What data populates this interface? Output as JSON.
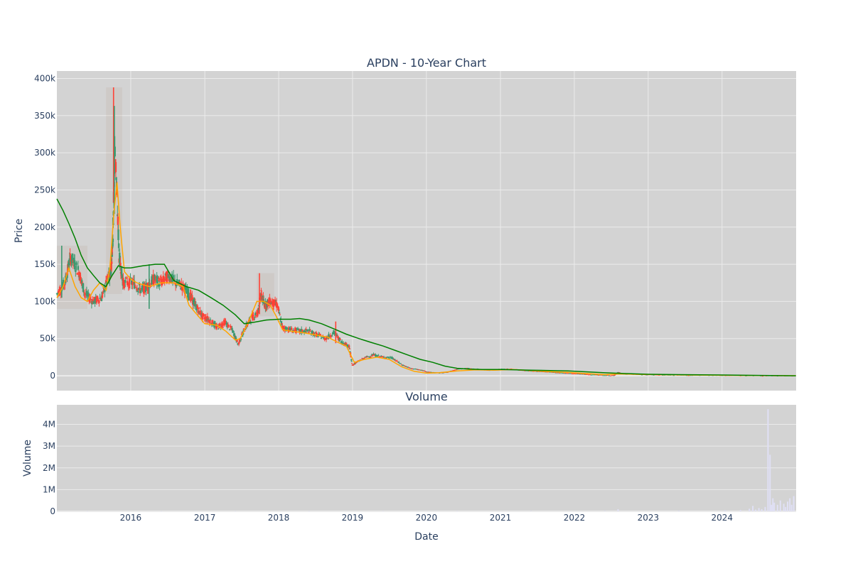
{
  "chart_data": [
    {
      "id": "price",
      "type": "candlestick",
      "title": "APDN - 10-Year Chart",
      "xlabel": "",
      "ylabel": "Price",
      "xlim": [
        "2015-01-01",
        "2025-01-01"
      ],
      "ylim": [
        -20000,
        410000
      ],
      "yticks": [
        0,
        50000,
        100000,
        150000,
        200000,
        250000,
        300000,
        350000,
        400000
      ],
      "ytick_labels": [
        "0",
        "50k",
        "100k",
        "150k",
        "200k",
        "250k",
        "300k",
        "350k",
        "400k"
      ],
      "grid": true,
      "legend": "none",
      "colors": {
        "plot_bg": "#d3d3d3",
        "grid": "#ebebeb",
        "up": "#3d9970",
        "down": "#ff4136",
        "ma_short": "#ffa500",
        "ma_long": "#008000"
      },
      "price_series": {
        "x": [
          "2015-01-01",
          "2015-02-10",
          "2015-03-10",
          "2015-04-20",
          "2015-05-20",
          "2015-06-30",
          "2015-08-10",
          "2015-09-10",
          "2015-09-25",
          "2015-10-05",
          "2015-10-15",
          "2015-11-05",
          "2015-11-25",
          "2016-01-15",
          "2016-02-20",
          "2016-03-20",
          "2016-04-25",
          "2016-05-30",
          "2016-07-05",
          "2016-08-10",
          "2016-09-15",
          "2016-10-15",
          "2016-11-15",
          "2016-12-20",
          "2017-01-25",
          "2017-03-01",
          "2017-04-10",
          "2017-05-20",
          "2017-06-15",
          "2017-07-20",
          "2017-08-20",
          "2017-09-20",
          "2017-10-05",
          "2017-10-25",
          "2017-11-20",
          "2017-12-25",
          "2018-01-20",
          "2018-03-01",
          "2018-04-15",
          "2018-05-30",
          "2018-07-10",
          "2018-08-20",
          "2018-09-30",
          "2018-11-10",
          "2018-12-15",
          "2018-12-31",
          "2019-01-20",
          "2019-03-01",
          "2019-04-15",
          "2019-06-01",
          "2019-07-15",
          "2019-09-01",
          "2019-10-15",
          "2019-12-01",
          "2020-01-15",
          "2020-03-01",
          "2020-04-15",
          "2020-06-01",
          "2020-07-15",
          "2020-09-01",
          "2020-10-15",
          "2020-12-01",
          "2021-01-15",
          "2021-03-01",
          "2021-05-01",
          "2021-07-01",
          "2021-09-01",
          "2021-11-01",
          "2022-01-01",
          "2022-03-01",
          "2022-05-01",
          "2022-07-15",
          "2022-08-05",
          "2022-09-01",
          "2022-11-01",
          "2023-01-01",
          "2023-04-01",
          "2023-07-01",
          "2023-10-01",
          "2024-01-01",
          "2024-04-01",
          "2024-07-01",
          "2024-10-01",
          "2024-12-31"
        ],
        "y": [
          110000,
          125000,
          160000,
          140000,
          110000,
          100000,
          105000,
          130000,
          140000,
          190000,
          310000,
          160000,
          125000,
          125000,
          115000,
          120000,
          130000,
          125000,
          135000,
          125000,
          120000,
          110000,
          95000,
          80000,
          75000,
          65000,
          72000,
          60000,
          42000,
          65000,
          78000,
          85000,
          110000,
          95000,
          100000,
          95000,
          65000,
          62000,
          60000,
          60000,
          55000,
          50000,
          58000,
          45000,
          40000,
          14000,
          18000,
          24000,
          28000,
          25000,
          24000,
          15000,
          10000,
          8000,
          5000,
          4000,
          5000,
          9000,
          10000,
          9000,
          8000,
          8000,
          9000,
          9000,
          7000,
          6000,
          5000,
          4000,
          3000,
          2000,
          1000,
          500,
          4500,
          2500,
          2000,
          1500,
          1200,
          1000,
          800,
          600,
          400,
          300,
          200,
          100
        ]
      },
      "highs": [
        {
          "x": "2015-01-25",
          "y": 175000
        },
        {
          "x": "2015-10-08",
          "y": 388000
        },
        {
          "x": "2015-10-12",
          "y": 363000
        },
        {
          "x": "2017-09-28",
          "y": 138000
        },
        {
          "x": "2016-04-01",
          "y": 150000
        },
        {
          "x": "2018-10-10",
          "y": 73000
        }
      ],
      "ma_short": {
        "x": [
          "2015-01-01",
          "2015-02-01",
          "2015-03-01",
          "2015-04-01",
          "2015-05-01",
          "2015-06-01",
          "2015-07-01",
          "2015-08-01",
          "2015-09-01",
          "2015-09-20",
          "2015-10-10",
          "2015-10-25",
          "2015-11-10",
          "2015-12-01",
          "2016-01-01",
          "2016-02-01",
          "2016-04-01",
          "2016-06-01",
          "2016-08-01",
          "2016-09-15",
          "2016-10-15",
          "2016-11-15",
          "2017-01-01",
          "2017-03-01",
          "2017-04-15",
          "2017-06-01",
          "2017-06-25",
          "2017-08-01",
          "2017-09-15",
          "2017-10-20",
          "2017-11-20",
          "2017-12-20",
          "2018-01-20",
          "2018-03-01",
          "2018-05-01",
          "2018-07-01",
          "2018-09-01",
          "2018-10-20",
          "2018-12-01",
          "2019-01-10",
          "2019-03-01",
          "2019-05-01",
          "2019-07-01",
          "2019-09-01",
          "2019-11-01",
          "2020-01-01",
          "2020-03-01",
          "2020-06-01",
          "2020-09-01",
          "2020-12-01",
          "2021-03-01",
          "2021-06-01",
          "2021-09-01",
          "2021-12-01",
          "2022-03-01",
          "2022-06-01",
          "2022-08-15",
          "2022-11-01",
          "2023-03-01",
          "2023-07-01",
          "2023-11-01",
          "2024-03-01",
          "2024-07-01",
          "2024-12-31"
        ],
        "y": [
          105000,
          120000,
          145000,
          120000,
          105000,
          100000,
          115000,
          125000,
          115000,
          145000,
          220000,
          260000,
          200000,
          140000,
          130000,
          125000,
          120000,
          125000,
          125000,
          120000,
          95000,
          85000,
          70000,
          68000,
          60000,
          48000,
          50000,
          70000,
          100000,
          100000,
          95000,
          80000,
          62000,
          60000,
          58000,
          55000,
          52000,
          45000,
          40000,
          18000,
          22000,
          25000,
          22000,
          12000,
          6000,
          3500,
          4000,
          6500,
          8000,
          7500,
          8500,
          7000,
          5500,
          4500,
          3000,
          1500,
          2500,
          2000,
          1500,
          1000,
          800,
          500,
          300,
          100
        ]
      },
      "ma_long": {
        "x": [
          "2015-01-01",
          "2015-02-01",
          "2015-03-01",
          "2015-04-01",
          "2015-05-01",
          "2015-06-01",
          "2015-07-01",
          "2015-08-01",
          "2015-09-01",
          "2015-10-01",
          "2015-11-01",
          "2015-12-01",
          "2016-01-01",
          "2016-03-01",
          "2016-05-01",
          "2016-06-15",
          "2016-08-01",
          "2016-10-01",
          "2016-12-01",
          "2017-02-01",
          "2017-04-01",
          "2017-06-01",
          "2017-07-15",
          "2017-09-01",
          "2017-11-01",
          "2018-01-01",
          "2018-03-01",
          "2018-04-15",
          "2018-06-01",
          "2018-08-01",
          "2018-10-01",
          "2018-12-01",
          "2019-02-01",
          "2019-04-01",
          "2019-06-01",
          "2019-08-01",
          "2019-10-01",
          "2019-12-01",
          "2020-02-01",
          "2020-04-01",
          "2020-06-01",
          "2020-08-01",
          "2020-10-01",
          "2021-01-01",
          "2021-06-01",
          "2021-12-01",
          "2022-06-01",
          "2022-09-01",
          "2023-01-01",
          "2023-06-01",
          "2024-01-01",
          "2024-06-01",
          "2024-12-31"
        ],
        "y": [
          238000,
          222000,
          205000,
          185000,
          162000,
          145000,
          135000,
          125000,
          120000,
          135000,
          148000,
          145000,
          145000,
          148000,
          150000,
          150000,
          128000,
          120000,
          115000,
          105000,
          95000,
          82000,
          70000,
          72000,
          75000,
          76000,
          76000,
          77000,
          75000,
          70000,
          63000,
          56000,
          50000,
          45000,
          40000,
          34000,
          28000,
          22000,
          18000,
          13000,
          10000,
          9000,
          8500,
          8500,
          7500,
          6500,
          4000,
          3000,
          2000,
          1500,
          1000,
          500,
          0
        ]
      },
      "range_rects": [
        {
          "x0": "2015-01-01",
          "x1": "2015-06-01",
          "y0": 90000,
          "y1": 175000
        },
        {
          "x0": "2015-09-01",
          "x1": "2015-11-20",
          "y0": 110000,
          "y1": 388000
        },
        {
          "x0": "2017-09-15",
          "x1": "2017-12-10",
          "y0": 80000,
          "y1": 138000
        }
      ]
    },
    {
      "id": "volume",
      "type": "bar",
      "title": "Volume",
      "xlabel": "Date",
      "ylabel": "Volume",
      "xlim": [
        "2015-01-01",
        "2025-01-01"
      ],
      "ylim": [
        0,
        4900000
      ],
      "yticks": [
        0,
        1000000,
        2000000,
        3000000,
        4000000
      ],
      "ytick_labels": [
        "0",
        "1M",
        "2M",
        "3M",
        "4M"
      ],
      "xticks": [
        "2016-01-01",
        "2017-01-01",
        "2018-01-01",
        "2019-01-01",
        "2020-01-01",
        "2021-01-01",
        "2022-01-01",
        "2023-01-01",
        "2024-01-01"
      ],
      "xtick_labels": [
        "2016",
        "2017",
        "2018",
        "2019",
        "2020",
        "2021",
        "2022",
        "2023",
        "2024"
      ],
      "grid": true,
      "colors": {
        "plot_bg": "#d3d3d3",
        "grid": "#ebebeb",
        "bar": "#e0e0f5"
      },
      "bars": {
        "x": [
          "2015-06-01",
          "2016-06-01",
          "2017-06-01",
          "2018-06-01",
          "2019-06-01",
          "2020-06-01",
          "2021-06-01",
          "2022-06-01",
          "2022-08-05",
          "2023-06-01",
          "2024-01-15",
          "2024-04-01",
          "2024-05-15",
          "2024-06-01",
          "2024-06-15",
          "2024-07-01",
          "2024-07-15",
          "2024-08-01",
          "2024-08-15",
          "2024-08-25",
          "2024-09-01",
          "2024-09-08",
          "2024-09-15",
          "2024-10-01",
          "2024-10-15",
          "2024-11-01",
          "2024-11-10",
          "2024-11-20",
          "2024-12-01",
          "2024-12-10",
          "2024-12-20"
        ],
        "y": [
          5000,
          5000,
          5000,
          5000,
          10000,
          10000,
          20000,
          20000,
          100000,
          30000,
          40000,
          60000,
          120000,
          250000,
          80000,
          150000,
          100000,
          200000,
          4700000,
          2600000,
          300000,
          600000,
          400000,
          300000,
          500000,
          350000,
          200000,
          450000,
          600000,
          300000,
          700000
        ]
      }
    }
  ]
}
